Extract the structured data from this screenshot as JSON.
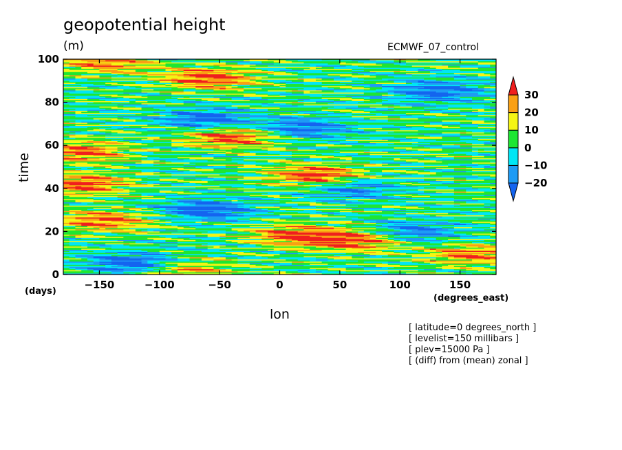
{
  "title": "geopotential height",
  "units": "(m)",
  "model": "ECMWF_07_control",
  "notes": [
    "[ latitude=0 degrees_north ]",
    "[ levelist=150 millibars ]",
    "[ plev=15000 Pa ]",
    "[ (diff) from (mean) zonal ]"
  ],
  "chart_data": {
    "type": "heatmap",
    "xlabel": "lon",
    "ylabel": "time",
    "x_unit": "(degrees_east)",
    "y_unit": "(days)",
    "xlim": [
      -180,
      180
    ],
    "ylim": [
      0,
      100
    ],
    "x_ticks": [
      -150,
      -100,
      -50,
      0,
      50,
      100,
      150
    ],
    "x_tick_labels": [
      "−150",
      "−100",
      "−50",
      "0",
      "50",
      "100",
      "150"
    ],
    "y_ticks": [
      0,
      20,
      40,
      60,
      80,
      100
    ],
    "y_tick_labels": [
      "0",
      "20",
      "40",
      "60",
      "80",
      "100"
    ],
    "colorbar": {
      "ticks": [
        30,
        20,
        10,
        0,
        -10,
        -20
      ],
      "tick_labels": [
        "30",
        "20",
        "10",
        "0",
        "−10",
        "−20"
      ],
      "bins": [
        {
          "range": "<-20",
          "color": "#1464f0"
        },
        {
          "range": "-20 to -10",
          "color": "#1e9bf5"
        },
        {
          "range": "-10 to 0",
          "color": "#00e6f5"
        },
        {
          "range": "0 to 10",
          "color": "#1ee632"
        },
        {
          "range": "10 to 20",
          "color": "#f5f514"
        },
        {
          "range": "20 to 30",
          "color": "#faa014"
        },
        {
          "range": ">30",
          "color": "#f01e1e"
        }
      ]
    },
    "features": [
      {
        "lon": -145,
        "time": 98,
        "value": 25
      },
      {
        "lon": -60,
        "time": 91,
        "value": 32
      },
      {
        "lon": -40,
        "time": 64,
        "value": 32
      },
      {
        "lon": 30,
        "time": 46,
        "value": 34
      },
      {
        "lon": -165,
        "time": 42,
        "value": 30
      },
      {
        "lon": -145,
        "time": 25,
        "value": 28
      },
      {
        "lon": 15,
        "time": 18,
        "value": 30
      },
      {
        "lon": 65,
        "time": 16,
        "value": 30
      },
      {
        "lon": -165,
        "time": 57,
        "value": 28
      },
      {
        "lon": 160,
        "time": 9,
        "value": 26
      },
      {
        "lon": -80,
        "time": 2,
        "value": 26
      },
      {
        "lon": -120,
        "time": 5,
        "value": -32
      },
      {
        "lon": -60,
        "time": 30,
        "value": -30
      },
      {
        "lon": -60,
        "time": 72,
        "value": -28
      },
      {
        "lon": 20,
        "time": 68,
        "value": -26
      },
      {
        "lon": 130,
        "time": 85,
        "value": -28
      },
      {
        "lon": 110,
        "time": 20,
        "value": -24
      },
      {
        "lon": 60,
        "time": 40,
        "value": -22
      }
    ]
  }
}
